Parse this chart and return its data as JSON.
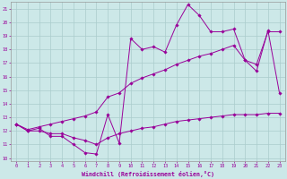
{
  "xlabel": "Windchill (Refroidissement éolien,°C)",
  "bg_color": "#cce8e8",
  "line_color": "#990099",
  "grid_color": "#aacccc",
  "xlim": [
    -0.5,
    23.5
  ],
  "ylim": [
    9.8,
    21.5
  ],
  "xticks": [
    0,
    1,
    2,
    3,
    4,
    5,
    6,
    7,
    8,
    9,
    10,
    11,
    12,
    13,
    14,
    15,
    16,
    17,
    18,
    19,
    20,
    21,
    22,
    23
  ],
  "yticks": [
    10,
    11,
    12,
    13,
    14,
    15,
    16,
    17,
    18,
    19,
    20,
    21
  ],
  "line1_x": [
    0,
    1,
    2,
    3,
    4,
    5,
    6,
    7,
    8,
    9,
    10,
    11,
    12,
    13,
    14,
    15,
    16,
    17,
    18,
    19,
    20,
    21,
    22,
    23
  ],
  "line1_y": [
    12.5,
    12.0,
    12.2,
    11.6,
    11.6,
    11.0,
    10.4,
    10.3,
    13.2,
    11.1,
    18.8,
    18.0,
    18.2,
    17.8,
    19.8,
    21.3,
    20.5,
    19.3,
    19.3,
    19.5,
    17.2,
    16.4,
    19.4,
    14.8
  ],
  "line2_x": [
    0,
    1,
    2,
    3,
    4,
    5,
    6,
    7,
    8,
    9,
    10,
    11,
    12,
    13,
    14,
    15,
    16,
    17,
    18,
    19,
    20,
    21,
    22,
    23
  ],
  "line2_y": [
    12.5,
    12.1,
    12.3,
    12.5,
    12.7,
    12.9,
    13.1,
    13.4,
    14.5,
    14.8,
    15.5,
    15.9,
    16.2,
    16.5,
    16.9,
    17.2,
    17.5,
    17.7,
    18.0,
    18.3,
    17.2,
    16.9,
    19.3,
    19.3
  ],
  "line3_x": [
    0,
    1,
    2,
    3,
    4,
    5,
    6,
    7,
    8,
    9,
    10,
    11,
    12,
    13,
    14,
    15,
    16,
    17,
    18,
    19,
    20,
    21,
    22,
    23
  ],
  "line3_y": [
    12.5,
    12.0,
    12.0,
    11.8,
    11.8,
    11.5,
    11.3,
    11.0,
    11.5,
    11.8,
    12.0,
    12.2,
    12.3,
    12.5,
    12.7,
    12.8,
    12.9,
    13.0,
    13.1,
    13.2,
    13.2,
    13.2,
    13.3,
    13.3
  ]
}
